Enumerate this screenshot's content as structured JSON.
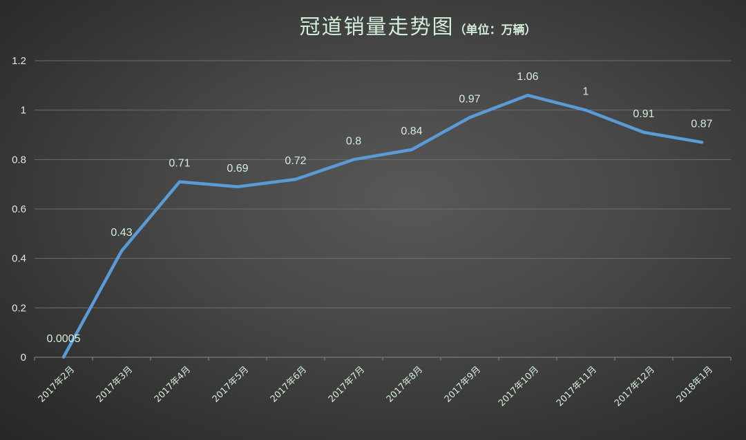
{
  "colors": {
    "background": "#474747",
    "line": "#5b9bd5",
    "gridline": "#6e6e6e",
    "text": "#d3eed8"
  },
  "chart_data": {
    "type": "line",
    "title": "冠道销量走势图",
    "subtitle": "（单位：万辆）",
    "categories": [
      "2017年2月",
      "2017年3月",
      "2017年4月",
      "2017年5月",
      "2017年6月",
      "2017年7月",
      "2017年8月",
      "2017年9月",
      "2017年10月",
      "2017年11月",
      "2017年12月",
      "2018年1月"
    ],
    "series": [
      {
        "values": [
          0.0005,
          0.43,
          0.71,
          0.69,
          0.72,
          0.8,
          0.84,
          0.97,
          1.06,
          1,
          0.91,
          0.87
        ],
        "labels": [
          "0.0005",
          "0.43",
          "0.71",
          "0.69",
          "0.72",
          "0.8",
          "0.84",
          "0.97",
          "1.06",
          "1",
          "0.91",
          "0.87"
        ]
      }
    ],
    "ylim": [
      0,
      1.2
    ],
    "yticks": [
      "0",
      "0.2",
      "0.4",
      "0.6",
      "0.8",
      "1",
      "1.2"
    ],
    "grid": true,
    "legend": "none"
  }
}
